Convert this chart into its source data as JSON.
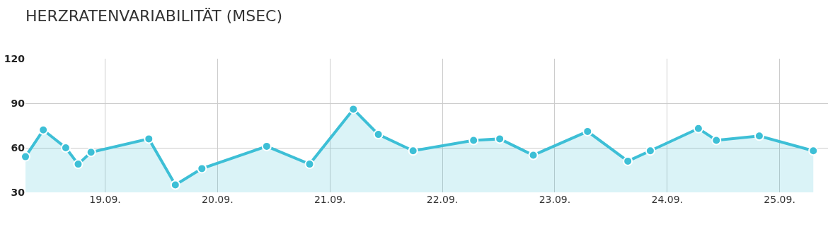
{
  "chart_data": {
    "type": "area",
    "title": "HERZRATENVARIABILITÄT (MSEC)",
    "x": [
      "--09-18T07:00",
      "--09-18T10:48",
      "--09-18T15:36",
      "--09-18T18:15",
      "--09-18T21:00",
      "--09-19T09:20",
      "--09-19T15:00",
      "--09-19T20:40",
      "--09-20T10:30",
      "--09-20T19:40",
      "--09-21T05:00",
      "--09-21T10:20",
      "--09-21T17:45",
      "--09-22T06:40",
      "--09-22T12:15",
      "--09-22T19:25",
      "--09-23T07:00",
      "--09-23T15:36",
      "--09-23T20:24",
      "--09-24T06:40",
      "--09-24T10:30",
      "--09-24T19:40",
      "--09-25T07:12"
    ],
    "series": [
      {
        "color": "#3dbfd6",
        "values": [
          54,
          72,
          60,
          49,
          57,
          66,
          35,
          46,
          61,
          49,
          86,
          69,
          58,
          65,
          66,
          55,
          71,
          51,
          58,
          73,
          65,
          68,
          58
        ]
      }
    ],
    "xlim": [
      "--09-18T07:00",
      "--09-25T10:20"
    ],
    "xticks": [
      {
        "value": "--09-19",
        "label": "19.09."
      },
      {
        "value": "--09-20",
        "label": "20.09."
      },
      {
        "value": "--09-21",
        "label": "21.09."
      },
      {
        "value": "--09-22",
        "label": "22.09."
      },
      {
        "value": "--09-23",
        "label": "23.09."
      },
      {
        "value": "--09-24",
        "label": "24.09."
      },
      {
        "value": "--09-25",
        "label": "25.09."
      }
    ],
    "ylim": [
      30,
      120
    ],
    "yticks": [
      30,
      60,
      90,
      120
    ],
    "grid": true,
    "marker": "circle"
  }
}
